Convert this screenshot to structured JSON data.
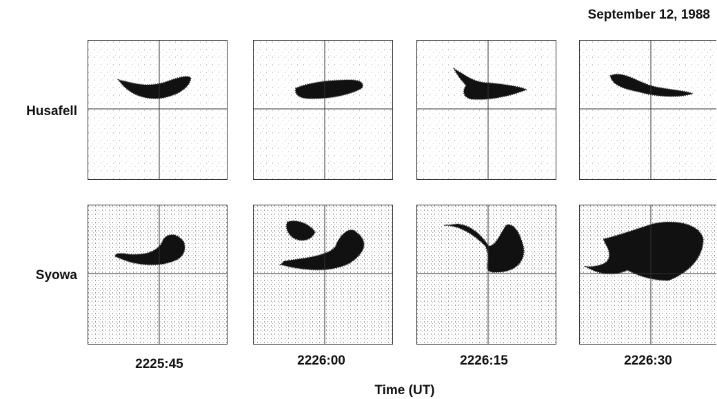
{
  "date": "September 12, 1988",
  "rows": [
    "Husafell",
    "Syowa"
  ],
  "times": [
    "2225:45",
    "2226:00",
    "2226:15",
    "2226:30"
  ],
  "axis_label": "Time (UT)"
}
